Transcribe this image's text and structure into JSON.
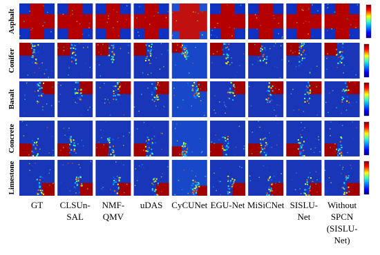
{
  "figure": {
    "rows": [
      "Asphalt",
      "Conifer",
      "Basalt",
      "Concrete",
      "Limestone"
    ],
    "columns": [
      [
        "GT"
      ],
      [
        "CLSUn-",
        "SAL"
      ],
      [
        "NMF-",
        "QMV"
      ],
      [
        "uDAS"
      ],
      [
        "CyCUNet"
      ],
      [
        "EGU-Net"
      ],
      [
        "MiSiCNet"
      ],
      [
        "SISLU-",
        "Net"
      ],
      [
        "Without",
        "SPCN",
        "(SISLU-",
        "Net)"
      ]
    ]
  }
}
